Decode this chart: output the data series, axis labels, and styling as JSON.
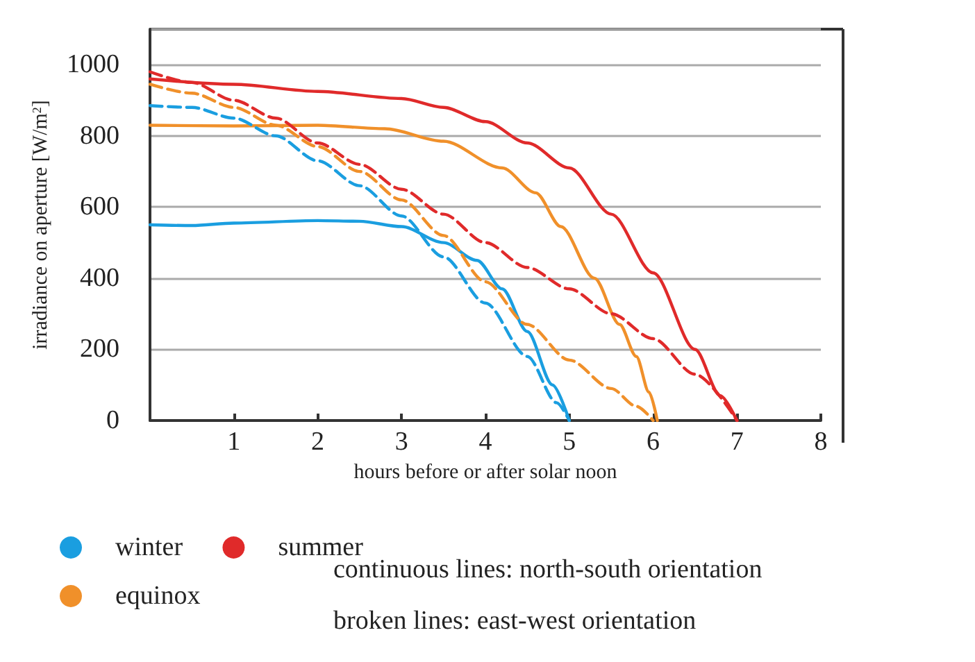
{
  "chart_data": {
    "type": "line",
    "xlabel": "hours before or after solar noon",
    "ylabel": "irradiance on aperture [W/m$^{2}$]",
    "xlim": [
      0,
      8
    ],
    "xticks": [
      1,
      2,
      3,
      4,
      5,
      6,
      7,
      8
    ],
    "ylim": [
      0,
      1100
    ],
    "yticks": [
      0,
      200,
      400,
      600,
      800,
      1000
    ],
    "grid": "y",
    "legend": "bottom left",
    "marker": "none",
    "line_style": "solid",
    "annotations": [
      "continuous lines: north-south orientation",
      "broken lines: east-west orientation"
    ],
    "series": [
      {
        "name": "winter",
        "color": "#1a9ee0",
        "x": [
          0,
          0.5,
          1,
          2,
          2.5,
          3,
          3.5,
          3.9,
          4.2,
          4.5,
          4.8,
          5.0
        ],
        "values": [
          550,
          548,
          555,
          562,
          560,
          545,
          500,
          450,
          370,
          250,
          100,
          0
        ]
      },
      {
        "name": "equinox",
        "color": "#f0902a",
        "x": [
          0,
          1,
          2,
          2.8,
          3.5,
          4.2,
          4.6,
          4.9,
          5.3,
          5.6,
          5.8,
          5.95,
          6.05
        ],
        "values": [
          830,
          828,
          830,
          820,
          785,
          710,
          640,
          545,
          400,
          270,
          180,
          80,
          0
        ]
      },
      {
        "name": "summer",
        "color": "#e02a2a",
        "x": [
          0,
          1,
          2,
          3,
          3.5,
          4,
          4.5,
          5,
          5.5,
          6,
          6.5,
          6.8,
          7.0
        ],
        "values": [
          960,
          945,
          925,
          905,
          880,
          840,
          780,
          710,
          580,
          415,
          200,
          70,
          0
        ]
      },
      {
        "color": "#1a9ee0",
        "line_style": "dashed",
        "x": [
          0,
          0.5,
          1,
          1.5,
          2,
          2.5,
          3,
          3.5,
          4,
          4.5,
          4.85,
          5.0
        ],
        "values": [
          885,
          880,
          850,
          800,
          730,
          660,
          575,
          460,
          330,
          180,
          50,
          0
        ]
      },
      {
        "color": "#f0902a",
        "line_style": "dashed",
        "x": [
          0,
          0.5,
          1,
          1.5,
          2,
          2.5,
          3,
          3.5,
          4,
          4.5,
          5,
          5.5,
          5.8,
          6.0
        ],
        "values": [
          945,
          920,
          880,
          830,
          770,
          700,
          620,
          520,
          390,
          270,
          170,
          90,
          40,
          0
        ]
      },
      {
        "color": "#e02a2a",
        "line_style": "dashed",
        "x": [
          0,
          0.5,
          1,
          1.5,
          2,
          2.5,
          3,
          3.5,
          4,
          4.5,
          5,
          5.5,
          6,
          6.5,
          7.0
        ],
        "values": [
          980,
          950,
          900,
          850,
          780,
          720,
          650,
          580,
          500,
          430,
          370,
          300,
          230,
          130,
          0
        ]
      }
    ]
  }
}
